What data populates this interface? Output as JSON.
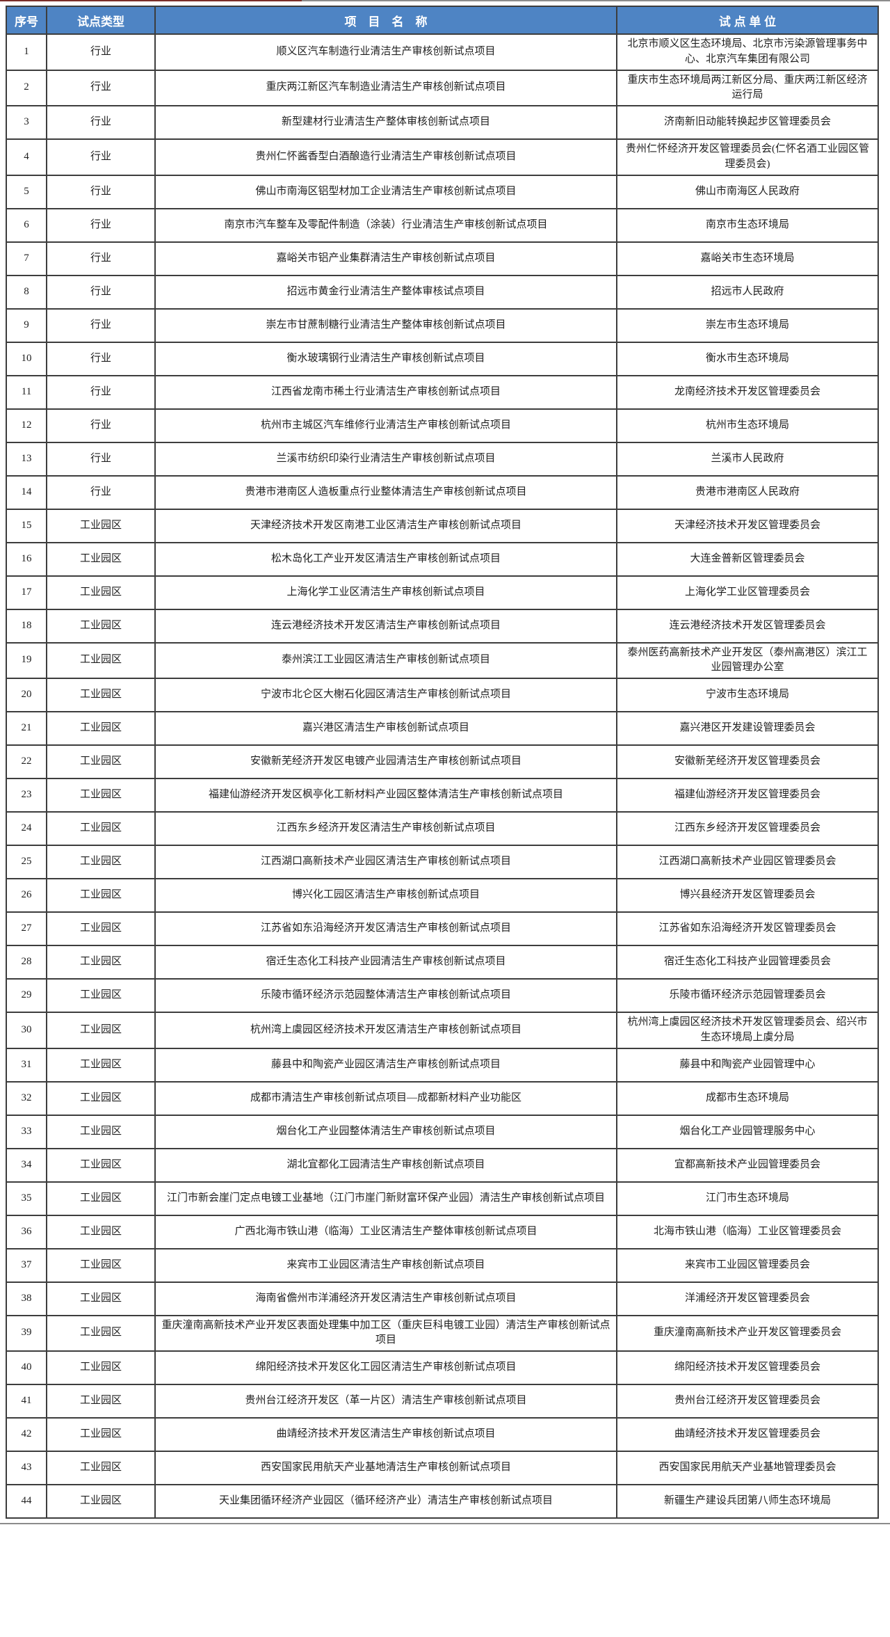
{
  "theme": {
    "header_bg": "#4e84c4",
    "header_fg": "#ffffff",
    "body_fg": "#1f1f1f",
    "border_color": "#3d3d3d",
    "top_line_red": "#7a2e29",
    "line_gray": "#8c8c8c"
  },
  "table": {
    "headers": [
      {
        "key": "index",
        "label": "序号"
      },
      {
        "key": "type",
        "label": "试点类型"
      },
      {
        "key": "name",
        "label": "项　目　名　称"
      },
      {
        "key": "unit",
        "label": "试 点 单 位"
      }
    ],
    "rows": [
      {
        "index": "1",
        "type": "行业",
        "name": "顺义区汽车制造行业清洁生产审核创新试点项目",
        "unit": "北京市顺义区生态环境局、北京市污染源管理事务中心、北京汽车集团有限公司"
      },
      {
        "index": "2",
        "type": "行业",
        "name": "重庆两江新区汽车制造业清洁生产审核创新试点项目",
        "unit": "重庆市生态环境局两江新区分局、重庆两江新区经济运行局"
      },
      {
        "index": "3",
        "type": "行业",
        "name": "新型建材行业清洁生产整体审核创新试点项目",
        "unit": "济南新旧动能转换起步区管理委员会"
      },
      {
        "index": "4",
        "type": "行业",
        "name": "贵州仁怀酱香型白酒酿造行业清洁生产审核创新试点项目",
        "unit": "贵州仁怀经济开发区管理委员会(仁怀名酒工业园区管理委员会)"
      },
      {
        "index": "5",
        "type": "行业",
        "name": "佛山市南海区铝型材加工企业清洁生产审核创新试点项目",
        "unit": "佛山市南海区人民政府"
      },
      {
        "index": "6",
        "type": "行业",
        "name": "南京市汽车整车及零配件制造（涂装）行业清洁生产审核创新试点项目",
        "unit": "南京市生态环境局"
      },
      {
        "index": "7",
        "type": "行业",
        "name": "嘉峪关市铝产业集群清洁生产审核创新试点项目",
        "unit": "嘉峪关市生态环境局"
      },
      {
        "index": "8",
        "type": "行业",
        "name": "招远市黄金行业清洁生产整体审核试点项目",
        "unit": "招远市人民政府"
      },
      {
        "index": "9",
        "type": "行业",
        "name": "崇左市甘蔗制糖行业清洁生产整体审核创新试点项目",
        "unit": "崇左市生态环境局"
      },
      {
        "index": "10",
        "type": "行业",
        "name": "衡水玻璃钢行业清洁生产审核创新试点项目",
        "unit": "衡水市生态环境局"
      },
      {
        "index": "11",
        "type": "行业",
        "name": "江西省龙南市稀土行业清洁生产审核创新试点项目",
        "unit": "龙南经济技术开发区管理委员会"
      },
      {
        "index": "12",
        "type": "行业",
        "name": "杭州市主城区汽车维修行业清洁生产审核创新试点项目",
        "unit": "杭州市生态环境局"
      },
      {
        "index": "13",
        "type": "行业",
        "name": "兰溪市纺织印染行业清洁生产审核创新试点项目",
        "unit": "兰溪市人民政府"
      },
      {
        "index": "14",
        "type": "行业",
        "name": "贵港市港南区人造板重点行业整体清洁生产审核创新试点项目",
        "unit": "贵港市港南区人民政府"
      },
      {
        "index": "15",
        "type": "工业园区",
        "name": "天津经济技术开发区南港工业区清洁生产审核创新试点项目",
        "unit": "天津经济技术开发区管理委员会"
      },
      {
        "index": "16",
        "type": "工业园区",
        "name": "松木岛化工产业开发区清洁生产审核创新试点项目",
        "unit": "大连金普新区管理委员会"
      },
      {
        "index": "17",
        "type": "工业园区",
        "name": "上海化学工业区清洁生产审核创新试点项目",
        "unit": "上海化学工业区管理委员会"
      },
      {
        "index": "18",
        "type": "工业园区",
        "name": "连云港经济技术开发区清洁生产审核创新试点项目",
        "unit": "连云港经济技术开发区管理委员会"
      },
      {
        "index": "19",
        "type": "工业园区",
        "name": "泰州滨江工业园区清洁生产审核创新试点项目",
        "unit": "泰州医药高新技术产业开发区（泰州高港区）滨江工业园管理办公室"
      },
      {
        "index": "20",
        "type": "工业园区",
        "name": "宁波市北仑区大榭石化园区清洁生产审核创新试点项目",
        "unit": "宁波市生态环境局"
      },
      {
        "index": "21",
        "type": "工业园区",
        "name": "嘉兴港区清洁生产审核创新试点项目",
        "unit": "嘉兴港区开发建设管理委员会"
      },
      {
        "index": "22",
        "type": "工业园区",
        "name": "安徽新芜经济开发区电镀产业园清洁生产审核创新试点项目",
        "unit": "安徽新芜经济开发区管理委员会"
      },
      {
        "index": "23",
        "type": "工业园区",
        "name": "福建仙游经济开发区枫亭化工新材料产业园区整体清洁生产审核创新试点项目",
        "unit": "福建仙游经济开发区管理委员会"
      },
      {
        "index": "24",
        "type": "工业园区",
        "name": "江西东乡经济开发区清洁生产审核创新试点项目",
        "unit": "江西东乡经济开发区管理委员会"
      },
      {
        "index": "25",
        "type": "工业园区",
        "name": "江西湖口高新技术产业园区清洁生产审核创新试点项目",
        "unit": "江西湖口高新技术产业园区管理委员会"
      },
      {
        "index": "26",
        "type": "工业园区",
        "name": "博兴化工园区清洁生产审核创新试点项目",
        "unit": "博兴县经济开发区管理委员会"
      },
      {
        "index": "27",
        "type": "工业园区",
        "name": "江苏省如东沿海经济开发区清洁生产审核创新试点项目",
        "unit": "江苏省如东沿海经济开发区管理委员会"
      },
      {
        "index": "28",
        "type": "工业园区",
        "name": "宿迁生态化工科技产业园清洁生产审核创新试点项目",
        "unit": "宿迁生态化工科技产业园管理委员会"
      },
      {
        "index": "29",
        "type": "工业园区",
        "name": "乐陵市循环经济示范园整体清洁生产审核创新试点项目",
        "unit": "乐陵市循环经济示范园管理委员会"
      },
      {
        "index": "30",
        "type": "工业园区",
        "name": "杭州湾上虞园区经济技术开发区清洁生产审核创新试点项目",
        "unit": "杭州湾上虞园区经济技术开发区管理委员会、绍兴市生态环境局上虞分局"
      },
      {
        "index": "31",
        "type": "工业园区",
        "name": "藤县中和陶瓷产业园区清洁生产审核创新试点项目",
        "unit": "藤县中和陶瓷产业园管理中心"
      },
      {
        "index": "32",
        "type": "工业园区",
        "name": "成都市清洁生产审核创新试点项目—成都新材料产业功能区",
        "unit": "成都市生态环境局"
      },
      {
        "index": "33",
        "type": "工业园区",
        "name": "烟台化工产业园整体清洁生产审核创新试点项目",
        "unit": "烟台化工产业园管理服务中心"
      },
      {
        "index": "34",
        "type": "工业园区",
        "name": "湖北宜都化工园清洁生产审核创新试点项目",
        "unit": "宜都高新技术产业园管理委员会"
      },
      {
        "index": "35",
        "type": "工业园区",
        "name": "江门市新会崖门定点电镀工业基地（江门市崖门新财富环保产业园）清洁生产审核创新试点项目",
        "unit": "江门市生态环境局"
      },
      {
        "index": "36",
        "type": "工业园区",
        "name": "广西北海市铁山港（临海）工业区清洁生产整体审核创新试点项目",
        "unit": "北海市铁山港（临海）工业区管理委员会"
      },
      {
        "index": "37",
        "type": "工业园区",
        "name": "来宾市工业园区清洁生产审核创新试点项目",
        "unit": "来宾市工业园区管理委员会"
      },
      {
        "index": "38",
        "type": "工业园区",
        "name": "海南省儋州市洋浦经济开发区清洁生产审核创新试点项目",
        "unit": "洋浦经济开发区管理委员会"
      },
      {
        "index": "39",
        "type": "工业园区",
        "name": "重庆潼南高新技术产业开发区表面处理集中加工区（重庆巨科电镀工业园）清洁生产审核创新试点项目",
        "unit": "重庆潼南高新技术产业开发区管理委员会"
      },
      {
        "index": "40",
        "type": "工业园区",
        "name": "绵阳经济技术开发区化工园区清洁生产审核创新试点项目",
        "unit": "绵阳经济技术开发区管理委员会"
      },
      {
        "index": "41",
        "type": "工业园区",
        "name": "贵州台江经济开发区（革一片区）清洁生产审核创新试点项目",
        "unit": "贵州台江经济开发区管理委员会"
      },
      {
        "index": "42",
        "type": "工业园区",
        "name": "曲靖经济技术开发区清洁生产审核创新试点项目",
        "unit": "曲靖经济技术开发区管理委员会"
      },
      {
        "index": "43",
        "type": "工业园区",
        "name": "西安国家民用航天产业基地清洁生产审核创新试点项目",
        "unit": "西安国家民用航天产业基地管理委员会"
      },
      {
        "index": "44",
        "type": "工业园区",
        "name": "天业集团循环经济产业园区（循环经济产业）清洁生产审核创新试点项目",
        "unit": "新疆生产建设兵团第八师生态环境局"
      }
    ]
  }
}
